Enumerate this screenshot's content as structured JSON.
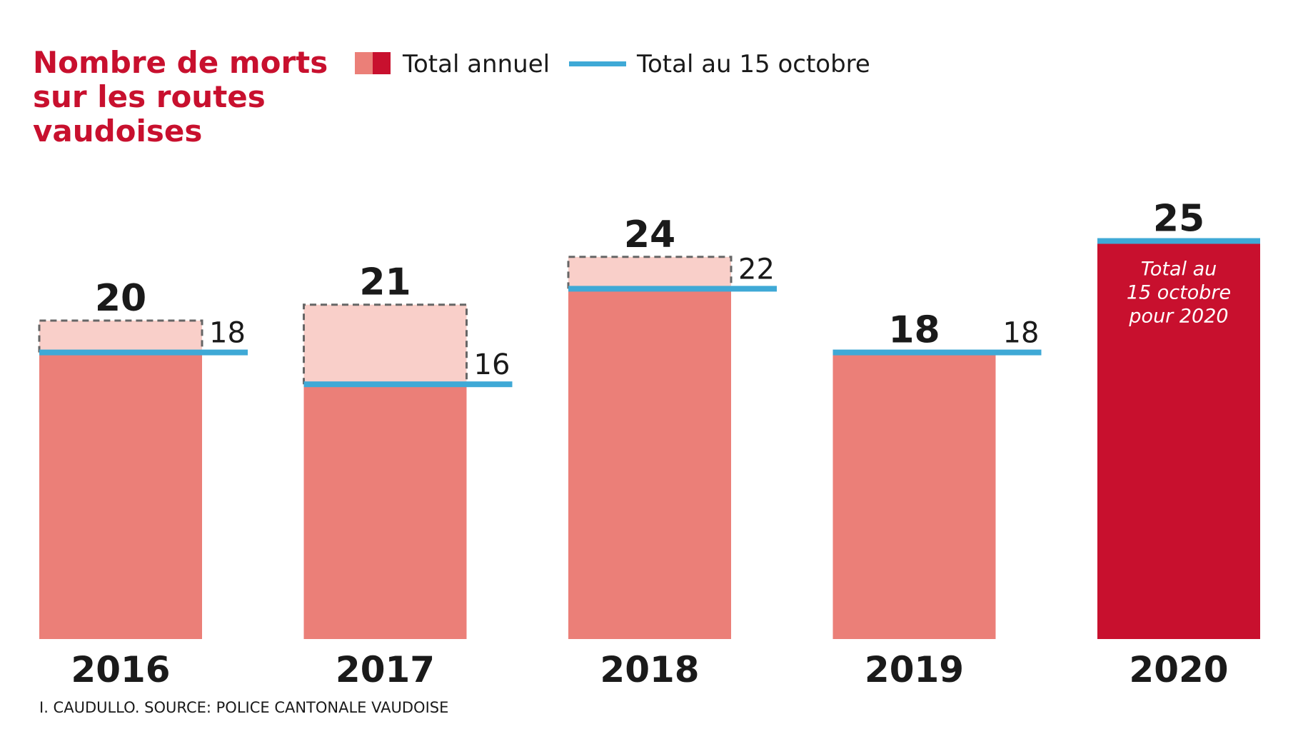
{
  "chart_data": {
    "type": "bar",
    "title": [
      "Nombre de morts",
      "sur les routes",
      "vaudoises"
    ],
    "categories": [
      "2016",
      "2017",
      "2018",
      "2019",
      "2020"
    ],
    "series": [
      {
        "name": "Total annuel",
        "values": [
          20,
          21,
          24,
          18,
          null
        ]
      },
      {
        "name": "Total au 15 octobre",
        "values": [
          18,
          16,
          22,
          18,
          25
        ]
      }
    ],
    "total_labels": [
      "20",
      "21",
      "24",
      "18",
      "25"
    ],
    "october_labels": [
      "18",
      "16",
      "22",
      "18",
      ""
    ],
    "note_2020": [
      "Total au",
      "15 octobre",
      "pour 2020"
    ],
    "ylim": [
      0,
      25
    ],
    "grid": false,
    "legend": "top",
    "colors": {
      "annual_bar": "#eb7f78",
      "annual_remainder": "#f9cfc9",
      "current_year_bar": "#c8102e",
      "october_line": "#3fa9d6",
      "dashed_outline": "#666666",
      "title": "#c8102e"
    }
  },
  "source": "I. CAUDULLO. SOURCE: POLICE CANTONALE VAUDOISE"
}
